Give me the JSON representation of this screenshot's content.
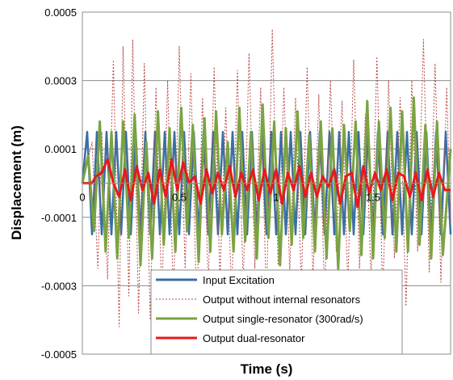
{
  "chart_data": {
    "type": "line",
    "xlabel": "Time (s)",
    "ylabel": "Displacement (m)",
    "xlim": [
      0,
      1.9
    ],
    "ylim": [
      -0.0005,
      0.0005
    ],
    "x_ticks": [
      0,
      0.5,
      1,
      1.5
    ],
    "x_tick_labels": [
      "0",
      "0.5",
      "1",
      "1.5"
    ],
    "y_ticks": [
      0.0005,
      0.0003,
      0.0001,
      -0.0001,
      -0.0003,
      -0.0005
    ],
    "y_tick_labels": [
      "0.0005",
      "0.0003",
      "0.0001",
      "-0.0001",
      "-0.0003",
      "-0.0005"
    ],
    "grid": "horizontal",
    "legend_position": "bottom-center",
    "series": [
      {
        "name": "Input Excitation",
        "color": "#3a6ea5",
        "style": "solid",
        "x": [
          0.0,
          0.025,
          0.05,
          0.075,
          0.1,
          0.125,
          0.15,
          0.175,
          0.2,
          0.225,
          0.25,
          0.275,
          0.3,
          0.325,
          0.35,
          0.375,
          0.4,
          0.425,
          0.45,
          0.475,
          0.5,
          0.525,
          0.55,
          0.575,
          0.6,
          0.625,
          0.65,
          0.675,
          0.7,
          0.725,
          0.75,
          0.775,
          0.8,
          0.825,
          0.85,
          0.875,
          0.9,
          0.925,
          0.95,
          0.975,
          1.0,
          1.025,
          1.05,
          1.075,
          1.1,
          1.125,
          1.15,
          1.175,
          1.2,
          1.225,
          1.25,
          1.275,
          1.3,
          1.325,
          1.35,
          1.375,
          1.4,
          1.425,
          1.45,
          1.475,
          1.5,
          1.525,
          1.55,
          1.575,
          1.6,
          1.625,
          1.65,
          1.675,
          1.7,
          1.725,
          1.75,
          1.775,
          1.8,
          1.825,
          1.85,
          1.875,
          1.9
        ],
        "y": [
          0.0,
          0.00015,
          -0.00015,
          0.00015,
          -0.00015,
          0.00015,
          -0.00015,
          0.00015,
          -0.00015,
          0.00015,
          -0.00015,
          0.00015,
          -0.00015,
          0.00015,
          -0.00015,
          0.00015,
          -0.00015,
          0.00015,
          -0.00015,
          0.00015,
          -0.00015,
          0.00015,
          -0.00015,
          0.00015,
          -0.00015,
          0.00015,
          -0.00015,
          0.00015,
          -0.00015,
          0.00015,
          -0.00015,
          0.00015,
          -0.00015,
          0.00015,
          -0.00015,
          0.00015,
          -0.00015,
          0.00015,
          -0.00015,
          0.00015,
          -0.00015,
          0.00015,
          -0.00015,
          0.00015,
          -0.00015,
          0.00015,
          -0.00015,
          0.00015,
          -0.00015,
          0.00015,
          -0.00015,
          0.00015,
          -0.00015,
          0.00015,
          -0.00015,
          0.00015,
          -0.00015,
          0.00015,
          -0.00015,
          0.00015,
          -0.00015,
          0.00015,
          -0.00015,
          0.00015,
          -0.00015,
          0.00015,
          -0.00015,
          0.00015,
          -0.00015,
          0.00015,
          -0.00015,
          0.00015,
          -0.00015,
          0.00015,
          -0.00015,
          0.00015,
          -0.00015
        ]
      },
      {
        "name": "Output without internal resonators",
        "color": "#b84a47",
        "style": "dashed",
        "x": [
          0.0,
          0.05,
          0.08,
          0.1,
          0.13,
          0.16,
          0.19,
          0.21,
          0.24,
          0.26,
          0.29,
          0.32,
          0.35,
          0.38,
          0.41,
          0.44,
          0.47,
          0.5,
          0.53,
          0.56,
          0.59,
          0.62,
          0.65,
          0.68,
          0.71,
          0.74,
          0.77,
          0.8,
          0.83,
          0.86,
          0.89,
          0.92,
          0.95,
          0.98,
          1.01,
          1.04,
          1.07,
          1.1,
          1.13,
          1.16,
          1.19,
          1.22,
          1.25,
          1.28,
          1.31,
          1.34,
          1.37,
          1.4,
          1.43,
          1.46,
          1.49,
          1.52,
          1.55,
          1.58,
          1.61,
          1.64,
          1.67,
          1.7,
          1.73,
          1.76,
          1.79,
          1.82,
          1.85,
          1.88,
          1.9
        ],
        "y": [
          0.0,
          0.00012,
          -0.00025,
          0.00015,
          -0.00028,
          0.00036,
          -0.00042,
          0.0004,
          -0.00033,
          0.00042,
          -0.00038,
          0.00035,
          -0.0004,
          0.00028,
          -0.00034,
          0.0003,
          -0.00035,
          0.0004,
          -0.00025,
          0.00032,
          -0.00038,
          0.00025,
          -0.0003,
          0.00034,
          -0.00028,
          0.00022,
          -0.00034,
          0.00033,
          -0.0003,
          0.00038,
          -0.00025,
          0.00028,
          -0.00035,
          0.00045,
          -0.00024,
          0.00028,
          -0.00026,
          0.00025,
          -0.0003,
          0.00034,
          -0.00028,
          0.00026,
          -0.00033,
          0.0003,
          -0.0002,
          0.00024,
          -0.0003,
          0.00036,
          -0.00025,
          0.0002,
          -0.00028,
          0.00037,
          -0.00034,
          0.0003,
          -0.00022,
          0.00025,
          -0.00036,
          0.0003,
          -0.0002,
          0.00042,
          -0.00026,
          0.00035,
          -0.00029,
          0.00028,
          -0.00012
        ]
      },
      {
        "name": "Output single-resonator (300rad/s)",
        "color": "#7aa342",
        "style": "solid",
        "x": [
          0.0,
          0.03,
          0.06,
          0.09,
          0.12,
          0.15,
          0.18,
          0.21,
          0.24,
          0.27,
          0.3,
          0.33,
          0.36,
          0.39,
          0.42,
          0.45,
          0.48,
          0.51,
          0.54,
          0.57,
          0.6,
          0.63,
          0.66,
          0.69,
          0.72,
          0.75,
          0.78,
          0.81,
          0.84,
          0.87,
          0.9,
          0.93,
          0.96,
          0.99,
          1.02,
          1.05,
          1.08,
          1.11,
          1.14,
          1.17,
          1.2,
          1.23,
          1.26,
          1.29,
          1.32,
          1.35,
          1.38,
          1.41,
          1.44,
          1.47,
          1.5,
          1.53,
          1.56,
          1.59,
          1.62,
          1.65,
          1.68,
          1.71,
          1.74,
          1.77,
          1.8,
          1.83,
          1.86,
          1.9
        ],
        "y": [
          0.0,
          8e-05,
          -0.00014,
          0.00018,
          -0.0002,
          0.00015,
          -0.00022,
          0.00018,
          -0.00016,
          0.0002,
          -0.00024,
          0.00012,
          -0.00022,
          0.00021,
          -0.00018,
          0.00016,
          -0.0002,
          0.00022,
          -0.00014,
          0.00017,
          -0.00023,
          0.00019,
          -0.0002,
          0.00021,
          -0.00015,
          0.00012,
          -0.0002,
          0.00022,
          -0.00017,
          0.00015,
          -0.00022,
          0.00023,
          -0.00016,
          0.00018,
          -0.00024,
          0.00016,
          -0.00018,
          0.00021,
          -0.00016,
          0.00014,
          -0.0002,
          0.00018,
          -0.00022,
          0.00016,
          -0.00025,
          0.00017,
          -0.00014,
          0.00018,
          -0.00021,
          0.00024,
          -0.00022,
          0.00018,
          -0.00016,
          0.00022,
          -0.0002,
          0.00021,
          -0.0002,
          0.00025,
          -0.00018,
          0.00017,
          -0.00022,
          0.00018,
          -0.00021,
          0.0001
        ]
      },
      {
        "name": "Output dual-resonator",
        "color": "#e8191b",
        "style": "solid",
        "x": [
          0.0,
          0.05,
          0.07,
          0.1,
          0.13,
          0.16,
          0.19,
          0.22,
          0.25,
          0.28,
          0.31,
          0.34,
          0.37,
          0.4,
          0.43,
          0.46,
          0.49,
          0.52,
          0.55,
          0.58,
          0.61,
          0.64,
          0.67,
          0.7,
          0.73,
          0.76,
          0.79,
          0.82,
          0.85,
          0.88,
          0.91,
          0.94,
          0.97,
          1.0,
          1.03,
          1.06,
          1.09,
          1.12,
          1.15,
          1.18,
          1.21,
          1.24,
          1.27,
          1.3,
          1.33,
          1.36,
          1.39,
          1.42,
          1.45,
          1.48,
          1.51,
          1.54,
          1.57,
          1.6,
          1.63,
          1.66,
          1.69,
          1.72,
          1.75,
          1.78,
          1.81,
          1.84,
          1.87,
          1.9
        ],
        "y": [
          0.0,
          0.0,
          2e-05,
          3e-05,
          7e-05,
          0.0,
          -4e-05,
          4e-05,
          -5e-05,
          5e-05,
          -2e-05,
          3e-05,
          -6e-05,
          4e-05,
          -4e-05,
          7e-05,
          -2e-05,
          6e-05,
          0.0,
          2e-05,
          -6e-05,
          4e-05,
          -3e-05,
          3e-05,
          -2e-05,
          5e-05,
          -4e-05,
          3e-05,
          -2e-05,
          4e-05,
          -5e-05,
          4e-05,
          -3e-05,
          4e-05,
          -6e-05,
          3e-05,
          -2e-05,
          5e-05,
          -4e-05,
          3e-05,
          -4e-05,
          2e-05,
          -1e-05,
          4e-05,
          -6e-05,
          2e-05,
          3e-05,
          -7e-05,
          5e-05,
          -3e-05,
          3e-05,
          -2e-05,
          4e-05,
          -5e-05,
          3e-05,
          2e-05,
          -4e-05,
          3e-05,
          -5e-05,
          4e-05,
          -4e-05,
          3e-05,
          -2e-05,
          -2e-05
        ]
      }
    ]
  }
}
